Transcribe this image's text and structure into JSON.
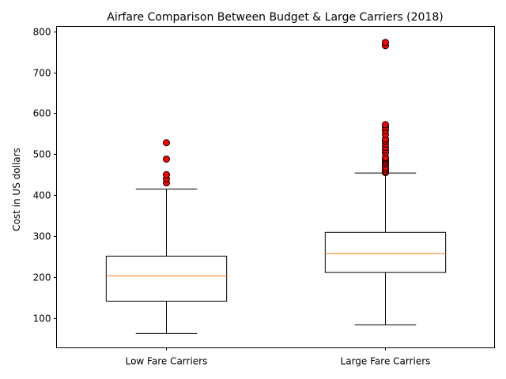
{
  "chart_data": {
    "type": "box",
    "title": "Airfare Comparison Between Budget & Large Carriers (2018)",
    "xlabel": "",
    "ylabel": "Cost in US dollars",
    "ylim": [
      27,
      812
    ],
    "yticks": [
      100,
      200,
      300,
      400,
      500,
      600,
      700,
      800
    ],
    "grid": false,
    "categories": [
      "Low Fare Carriers",
      "Large Fare Carriers"
    ],
    "boxes": [
      {
        "whisker_low": 62,
        "q1": 141,
        "median": 203,
        "q3": 251,
        "whisker_high": 415,
        "outliers": [
          430,
          440,
          450,
          488,
          528
        ]
      },
      {
        "whisker_low": 83,
        "q1": 211,
        "median": 257,
        "q3": 309,
        "whisker_high": 454,
        "outliers": [
          455,
          458,
          463,
          468,
          475,
          480,
          485,
          489,
          492,
          503,
          510,
          517,
          525,
          532,
          537,
          548,
          558,
          565,
          572,
          765,
          773
        ]
      }
    ],
    "colors": {
      "box": "#000000",
      "median": "#ff7f0e",
      "outlier_fill": "#ff0000",
      "outlier_edge": "#000000"
    }
  }
}
